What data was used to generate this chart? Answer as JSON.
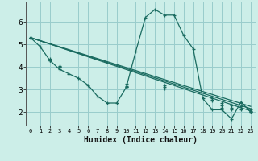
{
  "xlabel": "Humidex (Indice chaleur)",
  "bg_color": "#cceee8",
  "grid_color": "#99cccc",
  "line_color": "#1a6b60",
  "xlim": [
    -0.5,
    23.5
  ],
  "ylim": [
    1.4,
    6.9
  ],
  "xticks": [
    0,
    1,
    2,
    3,
    4,
    5,
    6,
    7,
    8,
    9,
    10,
    11,
    12,
    13,
    14,
    15,
    16,
    17,
    18,
    19,
    20,
    21,
    22,
    23
  ],
  "yticks": [
    2,
    3,
    4,
    5,
    6
  ],
  "series": [
    {
      "x": [
        0,
        1,
        2,
        3,
        4,
        5,
        6,
        7,
        8,
        9,
        10,
        11,
        12,
        13,
        14,
        15,
        16,
        17,
        18,
        19,
        20,
        21,
        22,
        23
      ],
      "y": [
        5.3,
        4.9,
        4.3,
        3.9,
        3.7,
        3.5,
        3.2,
        2.7,
        2.4,
        2.4,
        3.1,
        4.7,
        6.2,
        6.55,
        6.3,
        6.3,
        5.4,
        4.8,
        2.6,
        2.1,
        2.1,
        1.7,
        2.45,
        2.0
      ]
    },
    {
      "x": [
        0,
        23
      ],
      "y": [
        5.3,
        2.0
      ]
    },
    {
      "x": [
        0,
        23
      ],
      "y": [
        5.3,
        2.1
      ]
    },
    {
      "x": [
        0,
        23
      ],
      "y": [
        5.3,
        2.2
      ]
    }
  ],
  "series_markers": [
    {
      "x": [
        0,
        1,
        2,
        3,
        4,
        5,
        6,
        7,
        8,
        9,
        10,
        11,
        12,
        13,
        14,
        15,
        16,
        17,
        18,
        19,
        20,
        21,
        22,
        23
      ],
      "y": [
        5.3,
        4.9,
        4.3,
        3.9,
        3.7,
        3.5,
        3.2,
        2.7,
        2.4,
        2.4,
        3.1,
        4.7,
        6.2,
        6.55,
        6.3,
        6.3,
        5.4,
        4.8,
        2.6,
        2.1,
        2.1,
        1.7,
        2.45,
        2.0
      ]
    },
    {
      "x": [
        0,
        2,
        3,
        10,
        14,
        19,
        20,
        21,
        22,
        23
      ],
      "y": [
        5.3,
        4.3,
        4.0,
        3.1,
        3.05,
        2.5,
        2.2,
        2.1,
        2.1,
        2.0
      ]
    },
    {
      "x": [
        0,
        2,
        3,
        10,
        14,
        19,
        20,
        21,
        22,
        23
      ],
      "y": [
        5.3,
        4.35,
        4.05,
        3.15,
        3.1,
        2.55,
        2.3,
        2.2,
        2.15,
        2.05
      ]
    },
    {
      "x": [
        0,
        2,
        3,
        10,
        14,
        19,
        20,
        21,
        22,
        23
      ],
      "y": [
        5.3,
        4.3,
        4.0,
        3.25,
        3.2,
        2.6,
        2.4,
        2.3,
        2.25,
        2.1
      ]
    }
  ]
}
